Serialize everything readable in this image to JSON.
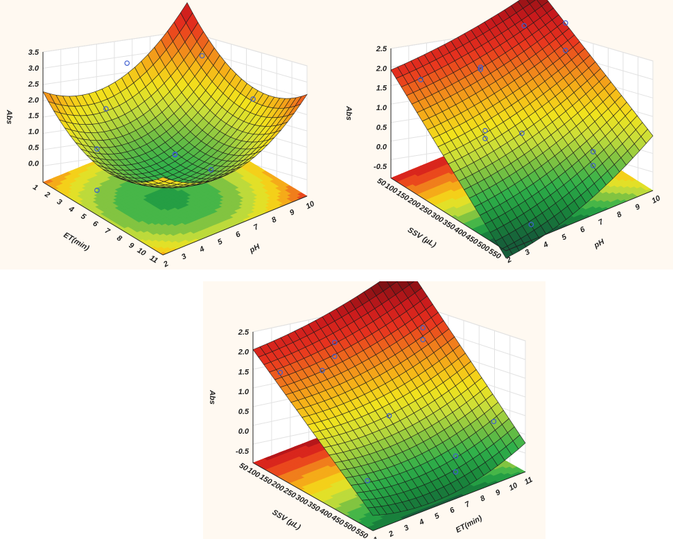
{
  "figure": {
    "panels": 3,
    "background": "#fff9f1",
    "colormap": [
      "#165e3a",
      "#1a8a3c",
      "#2fb04a",
      "#7cc242",
      "#c9de3a",
      "#f2e21c",
      "#f6b418",
      "#f07a1c",
      "#e8321e",
      "#c8191c",
      "#7a0f12"
    ]
  },
  "chart_data": [
    {
      "id": "a",
      "type": "surface3d",
      "title": "",
      "zlabel": "Abs",
      "xlabel": "ET(min)",
      "ylabel": "pH",
      "x_ticks": [
        "1",
        "2",
        "3",
        "4",
        "5",
        "6",
        "7",
        "8",
        "9",
        "10",
        "11"
      ],
      "y_ticks": [
        "2",
        "3",
        "4",
        "5",
        "6",
        "7",
        "8",
        "9",
        "10"
      ],
      "z_ticks": [
        "0.0",
        "0.5",
        "1.0",
        "1.5",
        "2.0",
        "2.5",
        "3.0",
        "3.5"
      ],
      "xlim": [
        1,
        11
      ],
      "ylim": [
        2,
        10
      ],
      "zlim": [
        -0.6,
        3.5
      ],
      "surface_corners": {
        "ET11_pH2": 2.6,
        "ET11_pH10": 3.0,
        "ET1_pH2": 0.8,
        "ET1_pH10": 2.9,
        "min_center": 0.05
      },
      "points": [
        {
          "x": 10,
          "y": 6,
          "z": 2.45
        },
        {
          "x": 8,
          "y": 3.5,
          "z": 2.05
        },
        {
          "x": 4,
          "y": 9,
          "z": 2.0
        },
        {
          "x": 9,
          "y": 9.5,
          "z": 2.1
        },
        {
          "x": 6,
          "y": 6,
          "z": 0.5
        },
        {
          "x": 6,
          "y": 6,
          "z": 0.48
        },
        {
          "x": 3,
          "y": 6,
          "z": 0.7
        },
        {
          "x": 8,
          "y": 3,
          "z": 0.9
        },
        {
          "x": 8,
          "y": 3,
          "z": -0.4
        }
      ]
    },
    {
      "id": "b",
      "type": "surface3d",
      "title": "",
      "zlabel": "Abs",
      "xlabel": "SSV (µL)",
      "ylabel": "pH",
      "x_ticks": [
        "50",
        "100",
        "150",
        "200",
        "250",
        "300",
        "350",
        "400",
        "450",
        "500",
        "550"
      ],
      "y_ticks": [
        "2",
        "3",
        "4",
        "5",
        "6",
        "7",
        "8",
        "9",
        "10"
      ],
      "z_ticks": [
        "-0.5",
        "0.0",
        "0.5",
        "1.0",
        "1.5",
        "2.0",
        "2.5"
      ],
      "xlim": [
        50,
        550
      ],
      "ylim": [
        2,
        10
      ],
      "zlim": [
        -0.8,
        2.5
      ],
      "surface_corners": {
        "SSV550_pH2": 1.95,
        "SSV550_pH10": 2.55,
        "SSV50_pH2": -1.0,
        "SSV50_pH10": 0.7
      },
      "points": [
        {
          "x": 500,
          "y": 3,
          "z": 1.7
        },
        {
          "x": 400,
          "y": 5,
          "z": 1.95
        },
        {
          "x": 400,
          "y": 5,
          "z": 2.0
        },
        {
          "x": 450,
          "y": 8,
          "z": 2.3
        },
        {
          "x": 350,
          "y": 9,
          "z": 2.55
        },
        {
          "x": 350,
          "y": 9,
          "z": 1.85
        },
        {
          "x": 300,
          "y": 4,
          "z": 0.95
        },
        {
          "x": 300,
          "y": 4,
          "z": 0.75
        },
        {
          "x": 300,
          "y": 6,
          "z": 0.5
        },
        {
          "x": 150,
          "y": 8,
          "z": 0.2
        },
        {
          "x": 150,
          "y": 8,
          "z": -0.15
        },
        {
          "x": 100,
          "y": 4,
          "z": -0.7
        }
      ]
    },
    {
      "id": "c",
      "type": "surface3d",
      "title": "",
      "zlabel": "Abs",
      "xlabel": "SSV (µL)",
      "ylabel": "ET(min)",
      "x_ticks": [
        "50",
        "100",
        "150",
        "200",
        "250",
        "300",
        "350",
        "400",
        "450",
        "500",
        "550"
      ],
      "y_ticks": [
        "1",
        "2",
        "3",
        "4",
        "5",
        "6",
        "7",
        "8",
        "9",
        "10",
        "11"
      ],
      "z_ticks": [
        "-0.5",
        "0.0",
        "0.5",
        "1.0",
        "1.5",
        "2.0",
        "2.5"
      ],
      "xlim": [
        50,
        550
      ],
      "ylim": [
        1,
        11
      ],
      "zlim": [
        -0.8,
        2.5
      ],
      "surface_corners": {
        "SSV550_ET1": 2.0,
        "SSV550_ET11": 2.75,
        "SSV50_ET1": -0.55,
        "SSV50_ET11": -0.05
      },
      "points": [
        {
          "x": 500,
          "y": 2,
          "z": 1.5
        },
        {
          "x": 400,
          "y": 4,
          "z": 2.3
        },
        {
          "x": 400,
          "y": 4,
          "z": 1.95
        },
        {
          "x": 420,
          "y": 3.5,
          "z": 1.6
        },
        {
          "x": 350,
          "y": 9,
          "z": 2.1
        },
        {
          "x": 350,
          "y": 9,
          "z": 1.8
        },
        {
          "x": 300,
          "y": 6,
          "z": 0.5
        },
        {
          "x": 200,
          "y": 3,
          "z": -0.35
        },
        {
          "x": 150,
          "y": 8,
          "z": -0.3
        },
        {
          "x": 150,
          "y": 8,
          "z": -0.7
        },
        {
          "x": 150,
          "y": 10.5,
          "z": 0.2
        }
      ]
    }
  ]
}
